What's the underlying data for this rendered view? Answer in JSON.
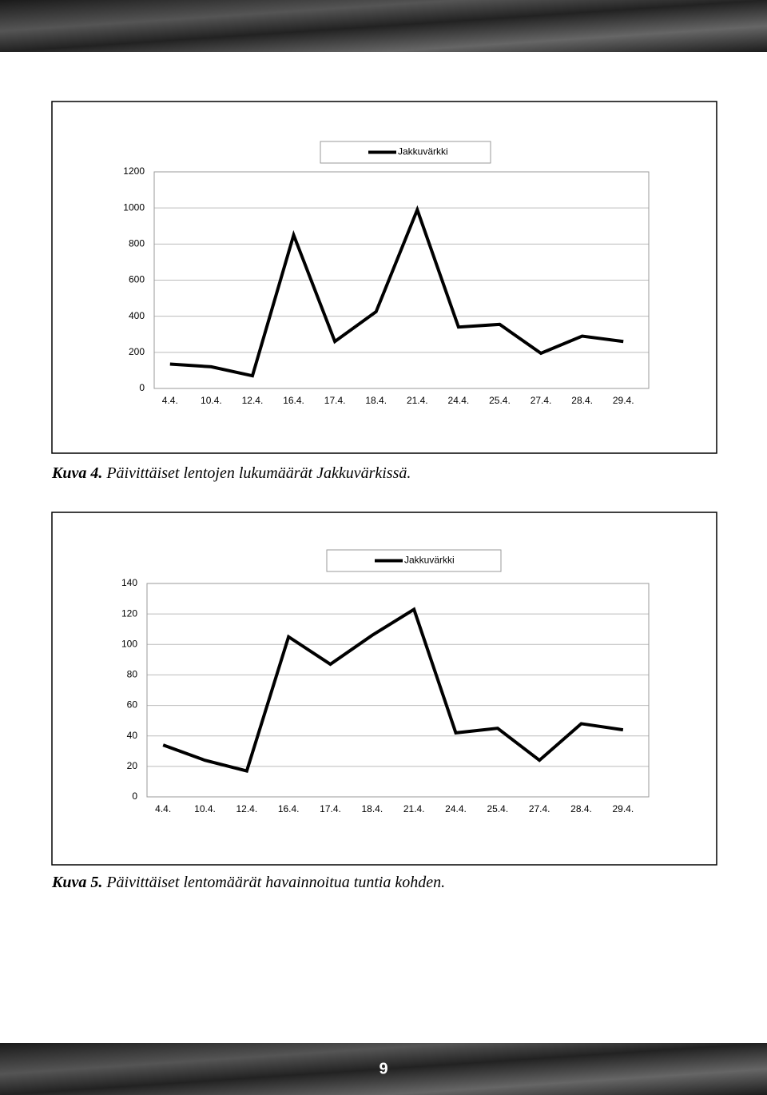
{
  "chart_data": [
    {
      "type": "line",
      "categories": [
        "4.4.",
        "10.4.",
        "12.4.",
        "16.4.",
        "17.4.",
        "18.4.",
        "21.4.",
        "24.4.",
        "25.4.",
        "27.4.",
        "28.4.",
        "29.4."
      ],
      "series": [
        {
          "name": "Jakkuvärkki",
          "color": "#000000",
          "values": [
            135,
            120,
            70,
            850,
            260,
            425,
            990,
            340,
            355,
            195,
            290,
            260
          ]
        }
      ],
      "ylim": [
        0,
        1200
      ],
      "yticks": [
        0,
        200,
        400,
        600,
        800,
        1000,
        1200
      ],
      "grid": true
    },
    {
      "type": "line",
      "categories": [
        "4.4.",
        "10.4.",
        "12.4.",
        "16.4.",
        "17.4.",
        "18.4.",
        "21.4.",
        "24.4.",
        "25.4.",
        "27.4.",
        "28.4.",
        "29.4."
      ],
      "series": [
        {
          "name": "Jakkuvärkki",
          "color": "#000000",
          "values": [
            34,
            24,
            17,
            105,
            87,
            106,
            123,
            42,
            45,
            24,
            48,
            44
          ]
        }
      ],
      "ylim": [
        0,
        140
      ],
      "yticks": [
        0,
        20,
        40,
        60,
        80,
        100,
        120,
        140
      ],
      "grid": true
    }
  ],
  "captions": [
    {
      "label": "Kuva 4.",
      "text": "Päivittäiset lentojen lukumäärät Jakkuvärkissä."
    },
    {
      "label": "Kuva 5.",
      "text": "Päivittäiset lentomäärät havainnoitua tuntia kohden."
    }
  ],
  "page_number": "9"
}
